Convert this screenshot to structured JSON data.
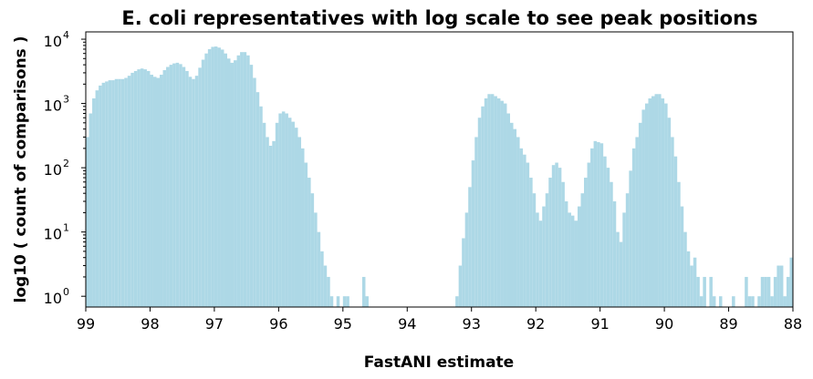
{
  "chart_data": {
    "type": "bar",
    "title": "E. coli representatives with log scale to see peak positions",
    "xlabel": "FastANI estimate",
    "ylabel": "log10 ( count of comparisons )",
    "x_reversed": true,
    "xlim": [
      99,
      88
    ],
    "ylim": [
      0.68,
      13000
    ],
    "y_scale": "log",
    "bar_color": "#add8e6",
    "bin_width": 0.05,
    "xticks": [
      99,
      98,
      97,
      96,
      95,
      94,
      93,
      92,
      91,
      90,
      89,
      88
    ],
    "yticks": [
      {
        "base": "10",
        "exp": "0",
        "value": 1
      },
      {
        "base": "10",
        "exp": "1",
        "value": 10
      },
      {
        "base": "10",
        "exp": "2",
        "value": 100
      },
      {
        "base": "10",
        "exp": "3",
        "value": 1000
      },
      {
        "base": "10",
        "exp": "4",
        "value": 10000
      }
    ],
    "bins": [
      [
        99.0,
        300
      ],
      [
        98.95,
        700
      ],
      [
        98.9,
        1200
      ],
      [
        98.85,
        1600
      ],
      [
        98.8,
        1900
      ],
      [
        98.75,
        2100
      ],
      [
        98.7,
        2200
      ],
      [
        98.65,
        2300
      ],
      [
        98.6,
        2300
      ],
      [
        98.55,
        2400
      ],
      [
        98.5,
        2400
      ],
      [
        98.45,
        2400
      ],
      [
        98.4,
        2500
      ],
      [
        98.35,
        2700
      ],
      [
        98.3,
        3000
      ],
      [
        98.25,
        3200
      ],
      [
        98.2,
        3400
      ],
      [
        98.15,
        3500
      ],
      [
        98.1,
        3400
      ],
      [
        98.05,
        3200
      ],
      [
        98.0,
        2800
      ],
      [
        97.95,
        2600
      ],
      [
        97.9,
        2500
      ],
      [
        97.85,
        2800
      ],
      [
        97.8,
        3300
      ],
      [
        97.75,
        3700
      ],
      [
        97.7,
        4000
      ],
      [
        97.65,
        4200
      ],
      [
        97.6,
        4300
      ],
      [
        97.55,
        4100
      ],
      [
        97.5,
        3700
      ],
      [
        97.45,
        3200
      ],
      [
        97.4,
        2600
      ],
      [
        97.35,
        2400
      ],
      [
        97.3,
        2700
      ],
      [
        97.25,
        3600
      ],
      [
        97.2,
        4800
      ],
      [
        97.15,
        6000
      ],
      [
        97.1,
        7000
      ],
      [
        97.05,
        7600
      ],
      [
        97.0,
        7700
      ],
      [
        96.95,
        7400
      ],
      [
        96.9,
        6900
      ],
      [
        96.85,
        6000
      ],
      [
        96.8,
        5000
      ],
      [
        96.75,
        4300
      ],
      [
        96.7,
        4700
      ],
      [
        96.65,
        5600
      ],
      [
        96.6,
        6300
      ],
      [
        96.55,
        6300
      ],
      [
        96.5,
        5600
      ],
      [
        96.45,
        4000
      ],
      [
        96.4,
        2500
      ],
      [
        96.35,
        1500
      ],
      [
        96.3,
        900
      ],
      [
        96.25,
        500
      ],
      [
        96.2,
        300
      ],
      [
        96.15,
        220
      ],
      [
        96.1,
        260
      ],
      [
        96.05,
        500
      ],
      [
        96.0,
        700
      ],
      [
        95.95,
        750
      ],
      [
        95.9,
        700
      ],
      [
        95.85,
        600
      ],
      [
        95.8,
        520
      ],
      [
        95.75,
        420
      ],
      [
        95.7,
        300
      ],
      [
        95.65,
        200
      ],
      [
        95.6,
        120
      ],
      [
        95.55,
        70
      ],
      [
        95.5,
        40
      ],
      [
        95.45,
        20
      ],
      [
        95.4,
        10
      ],
      [
        95.35,
        5
      ],
      [
        95.3,
        3
      ],
      [
        95.25,
        2
      ],
      [
        95.2,
        1
      ],
      [
        95.1,
        1
      ],
      [
        95.0,
        1
      ],
      [
        94.95,
        1
      ],
      [
        94.7,
        2
      ],
      [
        94.65,
        1
      ],
      [
        93.25,
        1
      ],
      [
        93.2,
        3
      ],
      [
        93.15,
        8
      ],
      [
        93.1,
        20
      ],
      [
        93.05,
        50
      ],
      [
        93.0,
        130
      ],
      [
        92.95,
        300
      ],
      [
        92.9,
        600
      ],
      [
        92.85,
        900
      ],
      [
        92.8,
        1200
      ],
      [
        92.75,
        1400
      ],
      [
        92.7,
        1400
      ],
      [
        92.65,
        1300
      ],
      [
        92.6,
        1200
      ],
      [
        92.55,
        1100
      ],
      [
        92.5,
        1000
      ],
      [
        92.45,
        700
      ],
      [
        92.4,
        500
      ],
      [
        92.35,
        400
      ],
      [
        92.3,
        300
      ],
      [
        92.25,
        200
      ],
      [
        92.2,
        160
      ],
      [
        92.15,
        120
      ],
      [
        92.1,
        70
      ],
      [
        92.05,
        40
      ],
      [
        92.0,
        20
      ],
      [
        91.95,
        15
      ],
      [
        91.9,
        25
      ],
      [
        91.85,
        40
      ],
      [
        91.8,
        70
      ],
      [
        91.75,
        110
      ],
      [
        91.7,
        120
      ],
      [
        91.65,
        100
      ],
      [
        91.6,
        60
      ],
      [
        91.55,
        30
      ],
      [
        91.5,
        20
      ],
      [
        91.45,
        18
      ],
      [
        91.4,
        15
      ],
      [
        91.35,
        25
      ],
      [
        91.3,
        40
      ],
      [
        91.25,
        70
      ],
      [
        91.2,
        120
      ],
      [
        91.15,
        200
      ],
      [
        91.1,
        260
      ],
      [
        91.05,
        250
      ],
      [
        91.0,
        240
      ],
      [
        90.95,
        150
      ],
      [
        90.9,
        100
      ],
      [
        90.85,
        60
      ],
      [
        90.8,
        30
      ],
      [
        90.75,
        10
      ],
      [
        90.7,
        7
      ],
      [
        90.65,
        20
      ],
      [
        90.6,
        40
      ],
      [
        90.55,
        90
      ],
      [
        90.5,
        200
      ],
      [
        90.45,
        300
      ],
      [
        90.4,
        500
      ],
      [
        90.35,
        800
      ],
      [
        90.3,
        1000
      ],
      [
        90.25,
        1200
      ],
      [
        90.2,
        1300
      ],
      [
        90.15,
        1400
      ],
      [
        90.1,
        1400
      ],
      [
        90.05,
        1200
      ],
      [
        90.0,
        1000
      ],
      [
        89.95,
        600
      ],
      [
        89.9,
        300
      ],
      [
        89.85,
        150
      ],
      [
        89.8,
        60
      ],
      [
        89.75,
        25
      ],
      [
        89.7,
        10
      ],
      [
        89.65,
        5
      ],
      [
        89.6,
        3
      ],
      [
        89.55,
        4
      ],
      [
        89.5,
        2
      ],
      [
        89.45,
        1
      ],
      [
        89.4,
        2
      ],
      [
        89.3,
        2
      ],
      [
        89.25,
        1
      ],
      [
        89.15,
        1
      ],
      [
        88.95,
        1
      ],
      [
        88.75,
        2
      ],
      [
        88.7,
        1
      ],
      [
        88.65,
        1
      ],
      [
        88.55,
        1
      ],
      [
        88.5,
        2
      ],
      [
        88.45,
        2
      ],
      [
        88.4,
        2
      ],
      [
        88.35,
        1
      ],
      [
        88.3,
        2
      ],
      [
        88.25,
        3
      ],
      [
        88.2,
        3
      ],
      [
        88.15,
        1
      ],
      [
        88.1,
        2
      ],
      [
        88.05,
        4
      ]
    ]
  }
}
